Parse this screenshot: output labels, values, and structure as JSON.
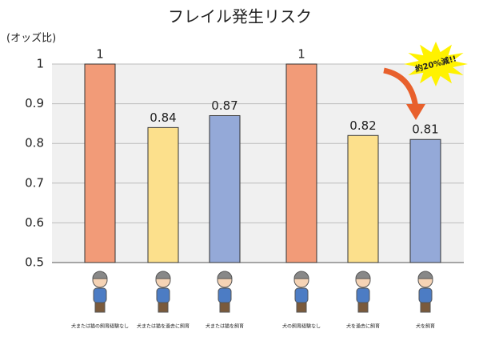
{
  "chart_data": {
    "type": "bar",
    "title": "フレイル発生リスク",
    "y_label": "(オッズ比)",
    "categories": [
      "犬または猫の飼育経験なし",
      "犬または猫を過去に飼育",
      "犬または猫を飼育",
      "犬の飼育経験なし",
      "犬を過去に飼育",
      "犬を飼育"
    ],
    "values": [
      1,
      0.84,
      0.87,
      1,
      0.82,
      0.81
    ],
    "colors": [
      "#f29b78",
      "#fce08c",
      "#94a9d8",
      "#f29b78",
      "#fce08c",
      "#94a9d8"
    ],
    "ylim": [
      0.5,
      1
    ],
    "yticks": [
      0.5,
      0.6,
      0.7,
      0.8,
      0.9,
      1
    ],
    "grid": true,
    "annotation": "約20%減!!"
  }
}
